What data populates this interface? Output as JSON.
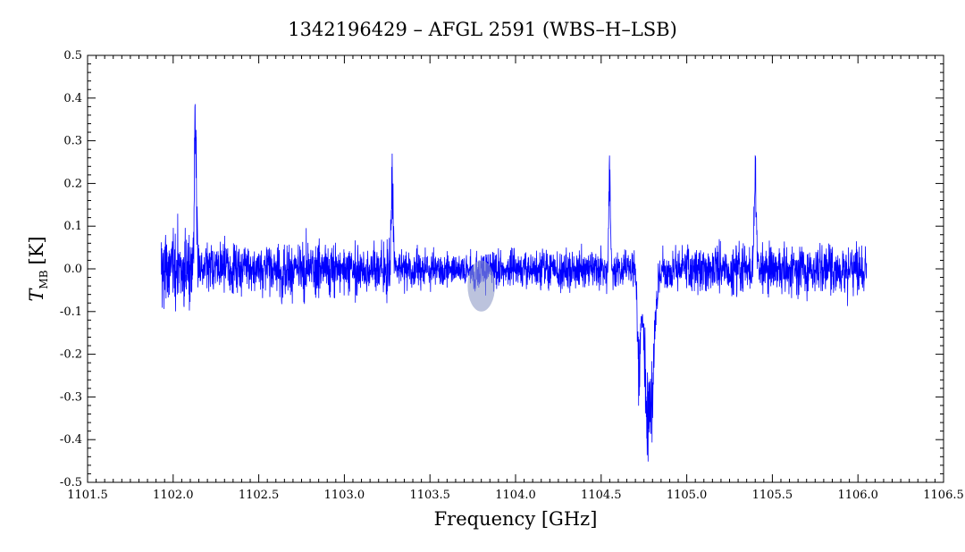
{
  "chart_data": {
    "type": "line",
    "title": "1342196429 – AFGL 2591 (WBS–H–LSB)",
    "xlabel": "Frequency [GHz]",
    "ylabel": "T",
    "ylabel_subscript": "MB",
    "ylabel_unit": "[K]",
    "xlim": [
      1101.5,
      1106.5
    ],
    "ylim": [
      -0.5,
      0.5
    ],
    "xticks": [
      "1101.5",
      "1102.0",
      "1102.5",
      "1103.0",
      "1103.5",
      "1104.0",
      "1104.5",
      "1105.0",
      "1105.5",
      "1106.0",
      "1106.5"
    ],
    "xtick_values": [
      1101.5,
      1102.0,
      1102.5,
      1103.0,
      1103.5,
      1104.0,
      1104.5,
      1105.0,
      1105.5,
      1106.0,
      1106.5
    ],
    "yticks": [
      "-0.5",
      "-0.4",
      "-0.3",
      "-0.2",
      "-0.1",
      "0.0",
      "0.1",
      "0.2",
      "0.3",
      "0.4",
      "0.5"
    ],
    "ytick_values": [
      -0.5,
      -0.4,
      -0.3,
      -0.2,
      -0.1,
      0.0,
      0.1,
      0.2,
      0.3,
      0.4,
      0.5
    ],
    "grid": false,
    "series_color": "#0000ff",
    "marker_color": "#8f9bc7",
    "x_range": [
      1101.93,
      1106.05
    ],
    "noise_levels": [
      {
        "from": 1101.93,
        "to": 1102.15,
        "sigma": 0.085
      },
      {
        "from": 1102.15,
        "to": 1103.3,
        "sigma": 0.055
      },
      {
        "from": 1103.3,
        "to": 1104.6,
        "sigma": 0.04
      },
      {
        "from": 1104.6,
        "to": 1105.0,
        "sigma": 0.04
      },
      {
        "from": 1105.0,
        "to": 1106.05,
        "sigma": 0.05
      }
    ],
    "features": [
      {
        "center": 1102.13,
        "peak": 0.33,
        "width": 0.006
      },
      {
        "center": 1103.28,
        "peak": 0.2,
        "width": 0.006
      },
      {
        "center": 1104.55,
        "peak": 0.2,
        "width": 0.005
      },
      {
        "center": 1105.4,
        "peak": 0.2,
        "width": 0.007
      },
      {
        "center": 1104.78,
        "peak": -0.36,
        "width": 0.025
      },
      {
        "center": 1104.72,
        "peak": -0.22,
        "width": 0.008
      }
    ],
    "highlight": {
      "center_x": 1103.8,
      "center_y": -0.04,
      "rx": 0.08,
      "ry": 0.06
    }
  }
}
